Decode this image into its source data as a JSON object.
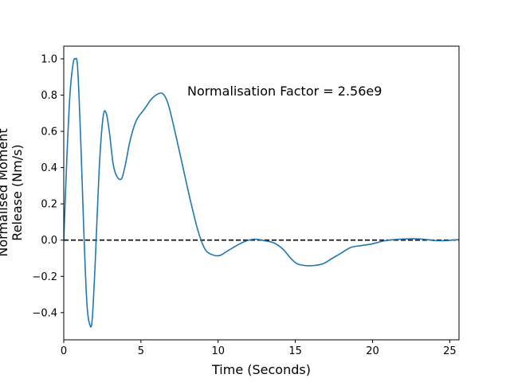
{
  "chart_data": {
    "type": "line",
    "xlabel": "Time (Seconds)",
    "ylabel_lines": [
      "Normalised Moment",
      "Release (Nm/s)"
    ],
    "xlim": [
      0,
      25.6
    ],
    "ylim": [
      -0.55,
      1.07
    ],
    "xticks": [
      0,
      5,
      10,
      15,
      20,
      25
    ],
    "yticks": [
      -0.4,
      -0.2,
      0.0,
      0.2,
      0.4,
      0.6,
      0.8,
      1.0
    ],
    "xtick_labels": [
      "0",
      "5",
      "10",
      "15",
      "20",
      "25"
    ],
    "ytick_labels": [
      "−0.4",
      "−0.2",
      "0.0",
      "0.2",
      "0.4",
      "0.6",
      "0.8",
      "1.0"
    ],
    "grid": false,
    "annotation": "Normalisation Factor = 2.56e9",
    "reference_line": {
      "y": 0,
      "style": "dashed",
      "color": "#000000"
    },
    "series": [
      {
        "color": "#1f77b4",
        "x": [
          0,
          0.2,
          0.4,
          0.6,
          0.75,
          0.9,
          1.1,
          1.3,
          1.5,
          1.7,
          1.85,
          2.05,
          2.3,
          2.55,
          2.75,
          2.95,
          3.2,
          3.45,
          3.75,
          4.0,
          4.3,
          4.7,
          5.2,
          5.7,
          6.2,
          6.5,
          6.8,
          7.2,
          7.7,
          8.2,
          8.7,
          9.15,
          9.6,
          10.1,
          10.6,
          11.2,
          11.8,
          12.4,
          13.0,
          13.6,
          14.2,
          14.7,
          15.1,
          15.6,
          16.2,
          16.8,
          17.4,
          18.0,
          18.6,
          19.3,
          20.0,
          20.7,
          21.3,
          22.0,
          22.7,
          23.4,
          24.0,
          24.7,
          25.6
        ],
        "y": [
          0.0,
          0.45,
          0.8,
          0.97,
          1.0,
          0.95,
          0.55,
          0.05,
          -0.35,
          -0.47,
          -0.43,
          -0.1,
          0.4,
          0.68,
          0.7,
          0.6,
          0.42,
          0.35,
          0.34,
          0.42,
          0.55,
          0.66,
          0.72,
          0.78,
          0.81,
          0.8,
          0.74,
          0.6,
          0.41,
          0.22,
          0.05,
          -0.05,
          -0.08,
          -0.085,
          -0.06,
          -0.03,
          -0.005,
          0.005,
          -0.003,
          -0.015,
          -0.05,
          -0.1,
          -0.13,
          -0.14,
          -0.14,
          -0.13,
          -0.1,
          -0.07,
          -0.04,
          -0.03,
          -0.02,
          -0.005,
          0.002,
          0.006,
          0.008,
          0.004,
          -0.002,
          -0.003,
          0.003
        ]
      }
    ]
  }
}
